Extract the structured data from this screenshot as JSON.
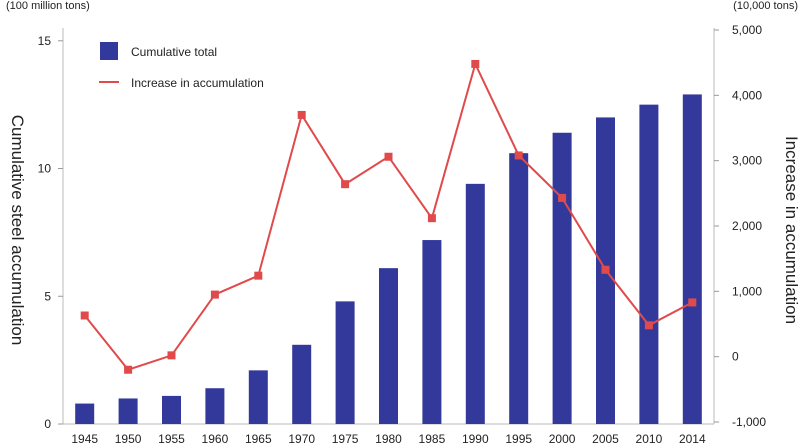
{
  "chart_data": {
    "type": "bar",
    "categories": [
      "1945",
      "1950",
      "1955",
      "1960",
      "1965",
      "1970",
      "1975",
      "1980",
      "1985",
      "1990",
      "1995",
      "2000",
      "2005",
      "2010",
      "2014"
    ],
    "left_unit": "(100 million tons)",
    "right_unit": "(10,000 tons)",
    "ylabel": "Cumulative steel accumulation",
    "y2label": "Increase in accumulation",
    "ylim": [
      0,
      15.5
    ],
    "y2lim": [
      -1000,
      5000
    ],
    "yticks": [
      0,
      5,
      10,
      15
    ],
    "y2ticks": [
      "-1,000",
      "0",
      "1,000",
      "2,000",
      "3,000",
      "4,000",
      "5,000"
    ],
    "y2tick_values": [
      -1000,
      0,
      1000,
      2000,
      3000,
      4000,
      5000
    ],
    "legend_position": "top-left",
    "series": [
      {
        "name": "Cumulative total",
        "kind": "bar",
        "axis": "left",
        "color": "#33399a",
        "values": [
          0.8,
          1.0,
          1.1,
          1.4,
          2.1,
          3.1,
          4.8,
          6.1,
          7.2,
          9.4,
          10.6,
          11.4,
          12.0,
          12.5,
          12.9
        ]
      },
      {
        "name": "Increase in accumulation",
        "kind": "line",
        "axis": "right",
        "color": "#e04a4a",
        "values": [
          630,
          -200,
          20,
          950,
          1240,
          3700,
          2640,
          3060,
          2120,
          4480,
          3080,
          2430,
          1330,
          480,
          830
        ]
      }
    ],
    "grid": false
  }
}
